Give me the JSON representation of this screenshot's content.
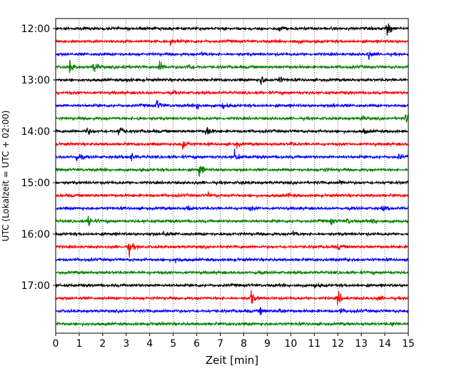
{
  "chart_data": {
    "type": "line",
    "title": "",
    "xlabel": "Zeit  [min]",
    "ylabel": "UTC (Lokalzeit = UTC + 02:00)",
    "xlim": [
      0,
      15
    ],
    "x_ticks": [
      0,
      1,
      2,
      3,
      4,
      5,
      6,
      7,
      8,
      9,
      10,
      11,
      12,
      13,
      14,
      15
    ],
    "x_tick_labels": [
      "0",
      "1",
      "2",
      "3",
      "4",
      "5",
      "6",
      "7",
      "8",
      "9",
      "10",
      "11",
      "12",
      "13",
      "14",
      "15"
    ],
    "y_tick_labels": [
      "12:00",
      "13:00",
      "14:00",
      "15:00",
      "16:00",
      "17:00"
    ],
    "grid": "vertical dotted at each minute",
    "trace_colors": [
      "#000000",
      "#ff0000",
      "#0000ff",
      "#008000"
    ],
    "traces": [
      {
        "start": "12:00",
        "events": [
          {
            "t": 9.5,
            "a": 0.35
          },
          {
            "t": 14.1,
            "a": 1.0
          }
        ]
      },
      {
        "start": "12:15",
        "events": [
          {
            "t": 4.9,
            "a": 0.3
          },
          {
            "t": 10.2,
            "a": 0.25
          }
        ]
      },
      {
        "start": "12:30",
        "events": [
          {
            "t": 13.3,
            "a": 0.5
          },
          {
            "t": 6.2,
            "a": 0.2
          }
        ]
      },
      {
        "start": "12:45",
        "events": [
          {
            "t": 0.6,
            "a": 0.7
          },
          {
            "t": 1.6,
            "a": 0.8
          },
          {
            "t": 4.4,
            "a": 0.9
          },
          {
            "t": 5.6,
            "a": 0.4
          },
          {
            "t": 2.9,
            "a": 0.35
          }
        ]
      },
      {
        "start": "13:00",
        "events": [
          {
            "t": 8.7,
            "a": 0.7
          },
          {
            "t": 9.5,
            "a": 0.45
          },
          {
            "t": 3.0,
            "a": 0.25
          }
        ]
      },
      {
        "start": "13:15",
        "events": [
          {
            "t": 5.0,
            "a": 0.2
          }
        ]
      },
      {
        "start": "13:30",
        "events": [
          {
            "t": 4.3,
            "a": 0.65
          },
          {
            "t": 6.0,
            "a": 0.45
          },
          {
            "t": 7.1,
            "a": 0.35
          },
          {
            "t": 11.8,
            "a": 0.3
          }
        ]
      },
      {
        "start": "13:45",
        "events": [
          {
            "t": 14.9,
            "a": 0.55
          },
          {
            "t": 13.0,
            "a": 0.3
          },
          {
            "t": 3.5,
            "a": 0.2
          }
        ]
      },
      {
        "start": "14:00",
        "events": [
          {
            "t": 1.3,
            "a": 0.5
          },
          {
            "t": 2.7,
            "a": 0.95
          },
          {
            "t": 6.4,
            "a": 0.75
          },
          {
            "t": 13.1,
            "a": 0.25
          }
        ]
      },
      {
        "start": "14:15",
        "events": [
          {
            "t": 5.4,
            "a": 0.8
          },
          {
            "t": 7.7,
            "a": 0.3
          },
          {
            "t": 10.0,
            "a": 0.25
          }
        ]
      },
      {
        "start": "14:30",
        "events": [
          {
            "t": 0.9,
            "a": 0.65
          },
          {
            "t": 3.2,
            "a": 0.5
          },
          {
            "t": 7.6,
            "a": 0.75
          },
          {
            "t": 14.6,
            "a": 0.3
          }
        ]
      },
      {
        "start": "14:45",
        "events": [
          {
            "t": 6.1,
            "a": 0.85
          },
          {
            "t": 11.4,
            "a": 0.25
          }
        ]
      },
      {
        "start": "15:00",
        "events": [
          {
            "t": 12.1,
            "a": 0.3
          },
          {
            "t": 7.9,
            "a": 0.2
          }
        ]
      },
      {
        "start": "15:15",
        "events": [
          {
            "t": 6.5,
            "a": 0.3
          },
          {
            "t": 9.9,
            "a": 0.2
          }
        ]
      },
      {
        "start": "15:30",
        "events": [
          {
            "t": 5.6,
            "a": 0.35
          },
          {
            "t": 8.3,
            "a": 0.25
          },
          {
            "t": 13.9,
            "a": 0.3
          }
        ]
      },
      {
        "start": "15:45",
        "events": [
          {
            "t": 1.4,
            "a": 0.8
          },
          {
            "t": 11.7,
            "a": 0.35
          },
          {
            "t": 12.4,
            "a": 0.3
          },
          {
            "t": 13.5,
            "a": 0.35
          }
        ]
      },
      {
        "start": "16:00",
        "events": [
          {
            "t": 4.6,
            "a": 0.3
          },
          {
            "t": 10.1,
            "a": 0.25
          }
        ]
      },
      {
        "start": "16:15",
        "events": [
          {
            "t": 3.1,
            "a": 0.9
          },
          {
            "t": 12.0,
            "a": 0.25
          }
        ]
      },
      {
        "start": "16:30",
        "events": [
          {
            "t": 5.1,
            "a": 0.3
          },
          {
            "t": 12.3,
            "a": 0.25
          }
        ]
      },
      {
        "start": "16:45",
        "events": [
          {
            "t": 8.5,
            "a": 0.2
          }
        ]
      },
      {
        "start": "17:00",
        "events": [
          {
            "t": 11.0,
            "a": 0.2
          }
        ]
      },
      {
        "start": "17:15",
        "events": [
          {
            "t": 8.3,
            "a": 0.8
          },
          {
            "t": 12.0,
            "a": 0.85
          },
          {
            "t": 13.7,
            "a": 0.25
          }
        ]
      },
      {
        "start": "17:30",
        "events": [
          {
            "t": 8.7,
            "a": 0.35
          },
          {
            "t": 9.5,
            "a": 0.35
          },
          {
            "t": 12.1,
            "a": 0.3
          }
        ]
      },
      {
        "start": "17:45",
        "events": [
          {
            "t": 14.3,
            "a": 0.2
          }
        ]
      }
    ]
  }
}
